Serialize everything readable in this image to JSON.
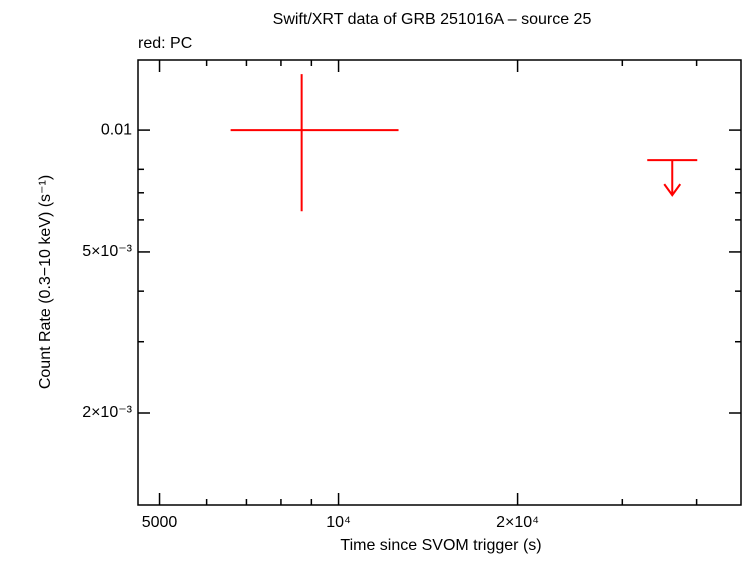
{
  "chart_data": {
    "type": "scatter",
    "title": "Swift/XRT data of GRB 251016A – source 25",
    "annotation": "red: PC",
    "x_label": "Time since SVOM trigger (s)",
    "y_label": "Count Rate (0.3−10 keV) (s⁻¹)",
    "log_x": true,
    "log_y": true,
    "color": "#ff0000",
    "xlim": [
      4600,
      47500
    ],
    "ylim": [
      0.001185,
      0.0149
    ],
    "xticks": [
      5000,
      {
        "value": 10000,
        "label": "10⁴"
      },
      {
        "value": 20000,
        "label": "2×10⁴"
      }
    ],
    "minor_xticks": [
      6000,
      7000,
      8000,
      9000,
      30000,
      40000
    ],
    "yticks": [
      {
        "value": 0.01,
        "label": "0.01"
      },
      {
        "value": 0.005,
        "label": "5×10⁻³"
      },
      {
        "value": 0.002,
        "label": "2×10⁻³"
      }
    ],
    "minor_yticks": [
      0.008,
      0.007,
      0.006,
      0.004,
      0.003
    ],
    "points": [
      {
        "x": 8668,
        "x_err_minus": 2084,
        "x_err_plus": 3946,
        "y": 0.01,
        "y_err_minus": 0.0037,
        "y_err_plus": 0.00375
      }
    ],
    "upper_limits": [
      {
        "x": 36400,
        "x_err_minus": 3360,
        "x_err_plus": 3700,
        "y": 0.00843
      }
    ]
  }
}
